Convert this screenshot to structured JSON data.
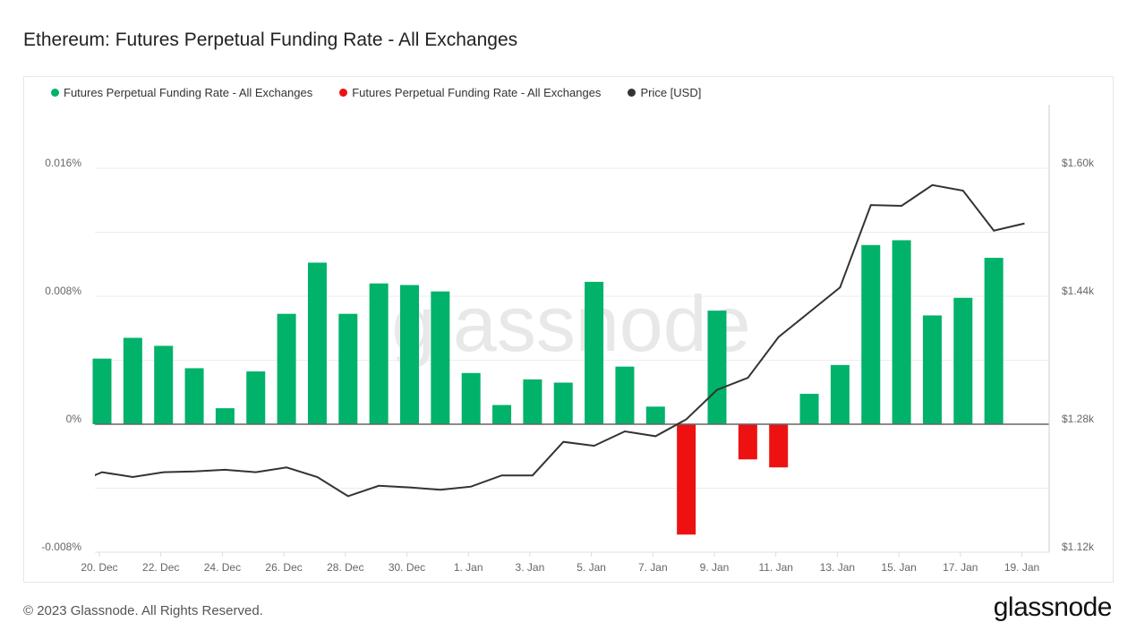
{
  "title": "Ethereum: Futures Perpetual Funding Rate - All Exchanges",
  "footer": "© 2023 Glassnode. All Rights Reserved.",
  "logo": "glassnode",
  "watermark": "glassnode",
  "chart_data": {
    "type": "bar",
    "legend": [
      {
        "name": "Futures Perpetual Funding Rate - All Exchanges",
        "color": "#00b26a"
      },
      {
        "name": "Futures Perpetual Funding Rate - All Exchanges",
        "color": "#ee1111"
      },
      {
        "name": "Price [USD]",
        "color": "#333333"
      }
    ],
    "legend_placement": "top-left",
    "grid": true,
    "y_left": {
      "range": [
        -0.008,
        0.016
      ],
      "ticks": [
        -0.008,
        0,
        0.008,
        0.016
      ],
      "tick_labels": [
        "-0.008%",
        "0%",
        "0.008%",
        "0.016%"
      ]
    },
    "y_right": {
      "range": [
        1120,
        1600
      ],
      "ticks": [
        1120,
        1280,
        1440,
        1600
      ],
      "tick_labels": [
        "$1.12k",
        "$1.28k",
        "$1.44k",
        "$1.60k"
      ]
    },
    "x_tick_labels": [
      "20. Dec",
      "22. Dec",
      "24. Dec",
      "26. Dec",
      "28. Dec",
      "30. Dec",
      "1. Jan",
      "3. Jan",
      "5. Jan",
      "7. Jan",
      "9. Jan",
      "11. Jan",
      "13. Jan",
      "15. Jan",
      "17. Jan",
      "19. Jan"
    ],
    "dates": [
      "2022-12-20",
      "2022-12-21",
      "2022-12-22",
      "2022-12-23",
      "2022-12-24",
      "2022-12-25",
      "2022-12-26",
      "2022-12-27",
      "2022-12-28",
      "2022-12-29",
      "2022-12-30",
      "2022-12-31",
      "2023-01-01",
      "2023-01-02",
      "2023-01-03",
      "2023-01-04",
      "2023-01-05",
      "2023-01-06",
      "2023-01-07",
      "2023-01-08",
      "2023-01-09",
      "2023-01-10",
      "2023-01-11",
      "2023-01-12",
      "2023-01-13",
      "2023-01-14",
      "2023-01-15",
      "2023-01-16",
      "2023-01-17",
      "2023-01-18"
    ],
    "funding_rate_pct": [
      0.0041,
      0.0054,
      0.0049,
      0.0035,
      0.001,
      0.0033,
      0.0069,
      0.0101,
      0.0069,
      0.0088,
      0.0087,
      0.0083,
      0.0032,
      0.0012,
      0.0028,
      0.0026,
      0.0089,
      0.0036,
      0.0011,
      -0.0069,
      0.0071,
      -0.0022,
      -0.0027,
      0.0019,
      0.0037,
      0.0112,
      0.0115,
      0.0068,
      0.0079,
      0.0104
    ],
    "price_dates": [
      "2022-12-19",
      "2022-12-20",
      "2022-12-21",
      "2022-12-22",
      "2022-12-23",
      "2022-12-24",
      "2022-12-25",
      "2022-12-26",
      "2022-12-27",
      "2022-12-28",
      "2022-12-29",
      "2022-12-30",
      "2022-12-31",
      "2023-01-01",
      "2023-01-02",
      "2023-01-03",
      "2023-01-04",
      "2023-01-05",
      "2023-01-06",
      "2023-01-07",
      "2023-01-08",
      "2023-01-09",
      "2023-01-10",
      "2023-01-11",
      "2023-01-12",
      "2023-01-13",
      "2023-01-14",
      "2023-01-15",
      "2023-01-16",
      "2023-01-17",
      "2023-01-18",
      "2023-01-19"
    ],
    "price_usd": [
      1204,
      1220,
      1214,
      1220,
      1221,
      1223,
      1220,
      1226,
      1214,
      1190,
      1203,
      1201,
      1198,
      1202,
      1216,
      1216,
      1258,
      1253,
      1271,
      1265,
      1286,
      1323,
      1338,
      1389,
      1420,
      1451,
      1554,
      1553,
      1579,
      1572,
      1522,
      1531
    ]
  }
}
